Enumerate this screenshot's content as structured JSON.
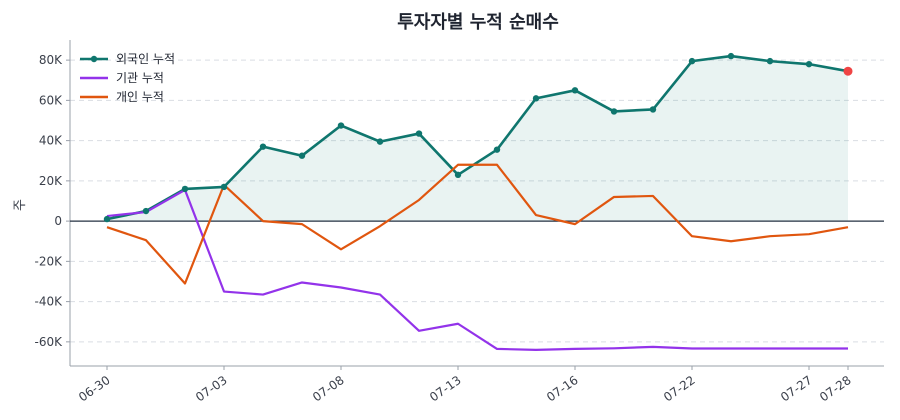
{
  "chart_data": {
    "type": "line",
    "title": "투자자별 누적 순매수",
    "xlabel": "",
    "ylabel": "주",
    "ylim": [
      -72000,
      90000
    ],
    "yticks": [
      80000,
      60000,
      40000,
      20000,
      0,
      -20000,
      -40000,
      -60000
    ],
    "ytick_labels": [
      "80K",
      "60K",
      "40K",
      "20K",
      "0",
      "-20K",
      "-40K",
      "-60K"
    ],
    "x": [
      "06-30",
      "07-01",
      "07-02",
      "07-03",
      "07-04",
      "07-07",
      "07-08",
      "07-09",
      "07-10",
      "07-13",
      "07-14",
      "07-15",
      "07-16",
      "07-17",
      "07-20",
      "07-22",
      "07-23",
      "07-24",
      "07-27",
      "07-28"
    ],
    "xticks": [
      "06-30",
      "07-03",
      "07-08",
      "07-13",
      "07-16",
      "07-22",
      "07-27",
      "07-28"
    ],
    "grid": "horizontal dashed",
    "legend": "top-left",
    "zero_line": true,
    "series": [
      {
        "name": "외국인 누적",
        "color": "#0f766e",
        "marker": true,
        "fill": true,
        "values": [
          1000,
          5000,
          16000,
          17000,
          37000,
          32500,
          47500,
          39500,
          43500,
          23000,
          35500,
          61000,
          65000,
          54500,
          55500,
          79500,
          82000,
          79500,
          78000,
          74500
        ]
      },
      {
        "name": "기관 누적",
        "color": "#9333ea",
        "marker": false,
        "fill": false,
        "values": [
          2500,
          4500,
          15500,
          -35000,
          -36500,
          -30500,
          -33000,
          -36500,
          -54500,
          -51000,
          -63500,
          -64000,
          -63500,
          -63200,
          -62500,
          -63300,
          -63300,
          -63300,
          -63300,
          -63300
        ]
      },
      {
        "name": "개인 누적",
        "color": "#e0560f",
        "marker": false,
        "fill": false,
        "values": [
          -3000,
          -9500,
          -31000,
          18000,
          0,
          -1500,
          -14000,
          -2500,
          10500,
          28000,
          28000,
          3000,
          -1500,
          12000,
          12500,
          -7500,
          -10000,
          -7500,
          -6500,
          -3000
        ]
      }
    ],
    "highlight_last_point_color": "#ef4444",
    "colors": {
      "grid": "#d9dde3",
      "axis": "#9aa0aa",
      "zero": "#243042"
    }
  }
}
